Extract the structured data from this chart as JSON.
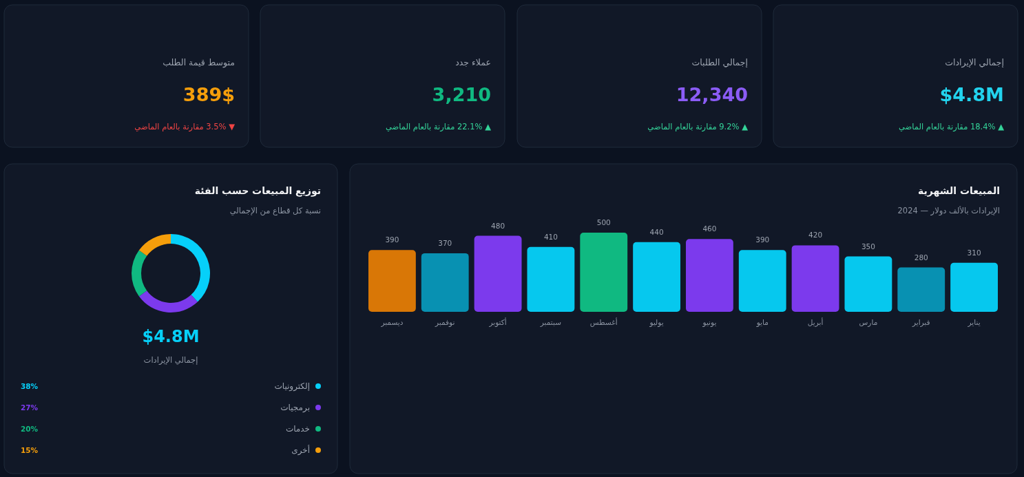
{
  "chart_data": [
    {
      "type": "other",
      "title": "إجمالي الإيرادات",
      "annotations": [
        "$4.8M",
        "▲ 18.4% مقارنة بالعام الماضي"
      ],
      "colors": [
        "#22d3ee",
        "#34d399"
      ]
    },
    {
      "type": "other",
      "title": "إجمالي الطلبات",
      "annotations": [
        "12,340",
        "▲ 9.2% مقارنة بالعام الماضي"
      ],
      "colors": [
        "#8b5cf6",
        "#34d399"
      ]
    },
    {
      "type": "other",
      "title": "عملاء جدد",
      "annotations": [
        "3,210",
        "▲ 22.1% مقارنة بالعام الماضي"
      ],
      "colors": [
        "#10b981",
        "#34d399"
      ]
    },
    {
      "type": "other",
      "title": "متوسط قيمة الطلب",
      "annotations": [
        "389$",
        "▼ 3.5% مقارنة بالعام الماضي"
      ],
      "colors": [
        "#f59e0b",
        "#ef4444"
      ]
    },
    {
      "type": "donut",
      "title": "توزيع المبيعات حسب الفئة",
      "subtitle": "نسبة كل قطاع من الإجمالي",
      "categories": [
        "إلكترونيات",
        "برمجيات",
        "خدمات",
        "أخرى"
      ],
      "values": [
        38,
        27,
        20,
        15
      ],
      "colors": [
        "#06d0f9",
        "#7c3aed",
        "#10b981",
        "#f59e0b"
      ],
      "value_labels": [
        "38%",
        "27%",
        "20%",
        "15%"
      ],
      "annotations": [
        "$4.8M",
        "إجمالي الإيرادات"
      ],
      "legend": "bottom"
    },
    {
      "type": "bar",
      "title": "المبيعات الشهرية",
      "subtitle": "الإيرادات بالألف دولار — 2024",
      "categories": [
        "ديسمبر",
        "نوفمبر",
        "أكتوبر",
        "سبتمبر",
        "أغسطس",
        "يوليو",
        "يونيو",
        "مايو",
        "أبريل",
        "مارس",
        "فبراير",
        "يناير"
      ],
      "values": [
        390,
        370,
        480,
        410,
        500,
        440,
        460,
        390,
        420,
        350,
        280,
        310
      ],
      "colors": [
        "#d97706",
        "#0891b2",
        "#7c3aed",
        "#06c8ee",
        "#10b981",
        "#06c8ee",
        "#7c3aed",
        "#06c8ee",
        "#7c3aed",
        "#06c8ee",
        "#0891b2",
        "#06c8ee"
      ],
      "data_labels": true
    }
  ]
}
